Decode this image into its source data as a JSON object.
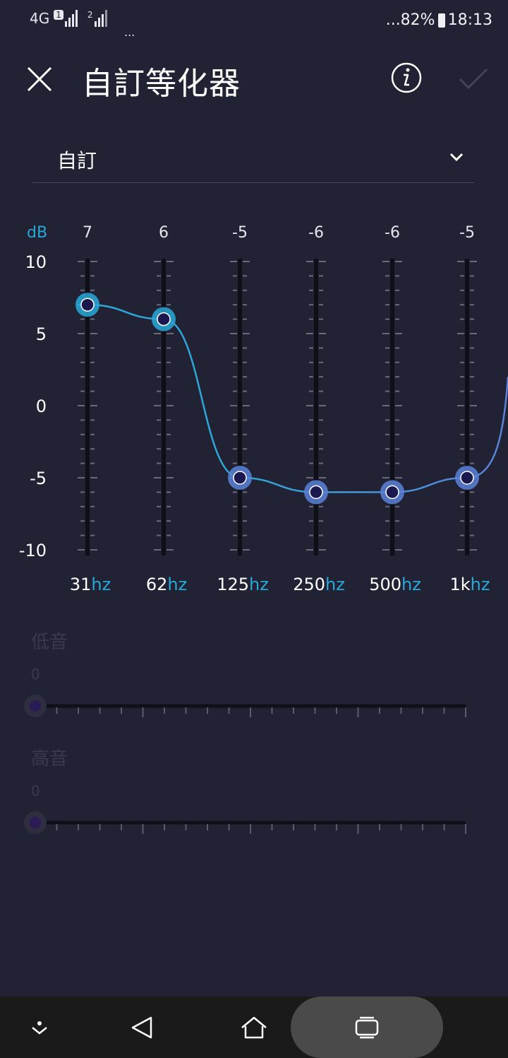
{
  "status_bar": {
    "network": "4G",
    "sim1": "1",
    "sim2": "2",
    "battery": "...82%",
    "time": "18:13",
    "more": "..."
  },
  "header": {
    "title": "自訂等化器"
  },
  "preset": {
    "selected": "自訂"
  },
  "eq": {
    "db_label": "dB",
    "bands": [
      {
        "freq": "31",
        "unit": "hz",
        "gain": 7
      },
      {
        "freq": "62",
        "unit": "hz",
        "gain": 6
      },
      {
        "freq": "125",
        "unit": "hz",
        "gain": -5
      },
      {
        "freq": "250",
        "unit": "hz",
        "gain": -6
      },
      {
        "freq": "500",
        "unit": "hz",
        "gain": -6
      },
      {
        "freq": "1k",
        "unit": "hz",
        "gain": -5
      }
    ],
    "gain_labels": [
      "7",
      "6",
      "-5",
      "-6",
      "-6",
      "-5"
    ],
    "scale_labels": [
      "10",
      "5",
      "0",
      "-5",
      "-10"
    ],
    "range": [
      -10,
      10
    ]
  },
  "bass": {
    "label": "低音",
    "value": "0",
    "level": 0
  },
  "treble": {
    "label": "高音",
    "value": "0",
    "level": 0
  },
  "colors": {
    "background": "#222235",
    "accent": "#29a8d8",
    "accent_blue": "#5b82d8"
  }
}
